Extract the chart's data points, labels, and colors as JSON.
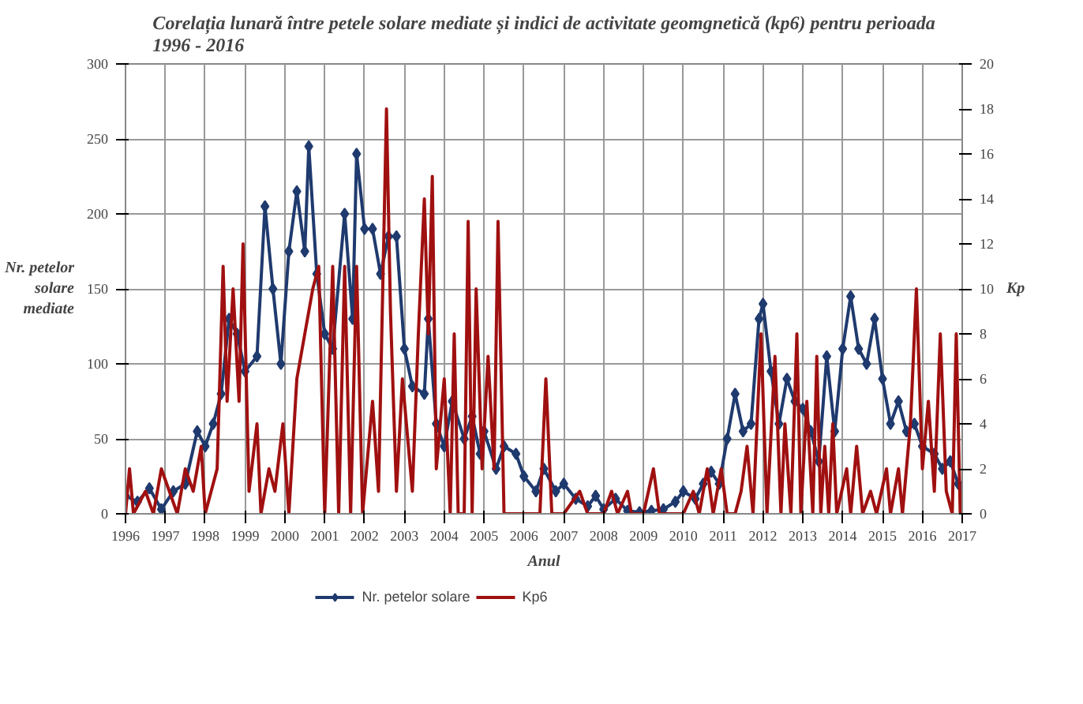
{
  "chart_data": {
    "type": "line",
    "title": "Corelația lunară între petele solare mediate și indici de activitate geomgnetică (kp6) pentru perioada\n1996 - 2016",
    "xlabel": "Anul",
    "ylabel": "Nr. petelor\nsolare\nmediate",
    "y2label": "Kp",
    "xlim": [
      1996,
      2017
    ],
    "xticks": [
      1996,
      1997,
      1998,
      1999,
      2000,
      2001,
      2002,
      2003,
      2004,
      2005,
      2006,
      2007,
      2008,
      2009,
      2010,
      2011,
      2012,
      2013,
      2014,
      2015,
      2016,
      2017
    ],
    "ylim": [
      0,
      300
    ],
    "yticks": [
      0,
      50,
      100,
      150,
      200,
      250,
      300
    ],
    "y2lim": [
      0,
      20
    ],
    "y2ticks": [
      0,
      2,
      4,
      6,
      8,
      10,
      12,
      14,
      16,
      18,
      20
    ],
    "grid": true,
    "legend": "bottom",
    "series": [
      {
        "name": "Nr. petelor solare",
        "color": "#1f3a6e",
        "marker": "diamond",
        "x": [
          1996.0,
          1996.3,
          1996.6,
          1996.9,
          1997.2,
          1997.5,
          1997.8,
          1998.0,
          1998.2,
          1998.4,
          1998.6,
          1998.8,
          1999.0,
          1999.3,
          1999.5,
          1999.7,
          1999.9,
          2000.1,
          2000.3,
          2000.5,
          2000.6,
          2000.8,
          2001.0,
          2001.2,
          2001.5,
          2001.7,
          2001.8,
          2002.0,
          2002.2,
          2002.4,
          2002.6,
          2002.8,
          2003.0,
          2003.2,
          2003.5,
          2003.6,
          2003.8,
          2004.0,
          2004.2,
          2004.5,
          2004.7,
          2004.9,
          2005.0,
          2005.3,
          2005.5,
          2005.8,
          2006.0,
          2006.3,
          2006.5,
          2006.8,
          2007.0,
          2007.3,
          2007.6,
          2007.8,
          2008.0,
          2008.3,
          2008.6,
          2008.9,
          2009.2,
          2009.5,
          2009.8,
          2010.0,
          2010.3,
          2010.5,
          2010.7,
          2010.9,
          2011.1,
          2011.3,
          2011.5,
          2011.7,
          2011.9,
          2012.0,
          2012.2,
          2012.4,
          2012.6,
          2012.8,
          2013.0,
          2013.2,
          2013.4,
          2013.6,
          2013.8,
          2014.0,
          2014.2,
          2014.4,
          2014.6,
          2014.8,
          2015.0,
          2015.2,
          2015.4,
          2015.6,
          2015.8,
          2016.0,
          2016.3,
          2016.5,
          2016.7,
          2016.9,
          2017.0
        ],
        "values": [
          12,
          8,
          17,
          3,
          15,
          20,
          55,
          45,
          60,
          80,
          130,
          120,
          95,
          105,
          205,
          150,
          100,
          175,
          215,
          175,
          245,
          160,
          120,
          110,
          200,
          130,
          240,
          190,
          190,
          160,
          185,
          185,
          110,
          85,
          80,
          130,
          60,
          45,
          75,
          50,
          65,
          40,
          55,
          30,
          45,
          40,
          25,
          15,
          30,
          15,
          20,
          10,
          5,
          12,
          3,
          10,
          2,
          1,
          2,
          3,
          8,
          15,
          10,
          20,
          28,
          20,
          50,
          80,
          55,
          60,
          130,
          140,
          95,
          60,
          90,
          75,
          70,
          55,
          35,
          105,
          55,
          110,
          145,
          110,
          100,
          130,
          90,
          60,
          75,
          55,
          60,
          45,
          40,
          30,
          35,
          20,
          17
        ]
      },
      {
        "name": "Kp6",
        "color": "#a01010",
        "axis": "y2",
        "marker": "none",
        "x": [
          1996.0,
          1996.1,
          1996.2,
          1996.5,
          1996.7,
          1996.9,
          1997.1,
          1997.3,
          1997.5,
          1997.7,
          1997.9,
          1998.0,
          1998.3,
          1998.45,
          1998.55,
          1998.7,
          1998.85,
          1998.95,
          1999.1,
          1999.3,
          1999.4,
          1999.6,
          1999.75,
          1999.95,
          2000.1,
          2000.3,
          2000.5,
          2000.7,
          2000.85,
          2001.0,
          2001.2,
          2001.35,
          2001.5,
          2001.65,
          2001.8,
          2001.95,
          2002.2,
          2002.35,
          2002.55,
          2002.65,
          2002.8,
          2002.95,
          2003.2,
          2003.35,
          2003.5,
          2003.6,
          2003.7,
          2003.8,
          2004.0,
          2004.15,
          2004.25,
          2004.35,
          2004.5,
          2004.6,
          2004.7,
          2004.8,
          2004.95,
          2005.1,
          2005.25,
          2005.35,
          2005.5,
          2005.65,
          2006.0,
          2006.4,
          2006.55,
          2006.7,
          2007.0,
          2007.4,
          2007.6,
          2008.0,
          2008.2,
          2008.35,
          2008.6,
          2008.7,
          2009.0,
          2009.25,
          2009.4,
          2010.0,
          2010.25,
          2010.4,
          2010.6,
          2010.75,
          2010.95,
          2011.1,
          2011.3,
          2011.45,
          2011.6,
          2011.75,
          2011.95,
          2012.1,
          2012.3,
          2012.45,
          2012.55,
          2012.7,
          2012.85,
          2012.95,
          2013.1,
          2013.25,
          2013.35,
          2013.45,
          2013.55,
          2013.65,
          2013.75,
          2013.85,
          2014.1,
          2014.2,
          2014.35,
          2014.5,
          2014.7,
          2014.85,
          2015.1,
          2015.2,
          2015.4,
          2015.5,
          2015.7,
          2015.85,
          2016.0,
          2016.15,
          2016.3,
          2016.45,
          2016.6,
          2016.75,
          2016.85,
          2016.95,
          2017.0
        ],
        "values": [
          0,
          2,
          0,
          1,
          0,
          2,
          1,
          0,
          2,
          1,
          3,
          0,
          2,
          11,
          5,
          10,
          5,
          12,
          1,
          4,
          0,
          2,
          1,
          4,
          0,
          6,
          8,
          10,
          11,
          0,
          11,
          0,
          11,
          0,
          11,
          0,
          5,
          1,
          18,
          9,
          1,
          6,
          1,
          8,
          14,
          8,
          15,
          2,
          6,
          0,
          8,
          0,
          0,
          13,
          0,
          10,
          2,
          7,
          2,
          13,
          0,
          0,
          0,
          0,
          6,
          0,
          0,
          1,
          0,
          0,
          1,
          0,
          1,
          0,
          0,
          2,
          0,
          0,
          1,
          0,
          2,
          0,
          2,
          0,
          0,
          1,
          3,
          0,
          8,
          0,
          7,
          0,
          4,
          0,
          8,
          0,
          5,
          0,
          7,
          0,
          3,
          0,
          4,
          0,
          2,
          0,
          3,
          0,
          1,
          0,
          2,
          0,
          2,
          0,
          4,
          10,
          2,
          5,
          1,
          8,
          1,
          0,
          8,
          0,
          1
        ]
      }
    ]
  }
}
